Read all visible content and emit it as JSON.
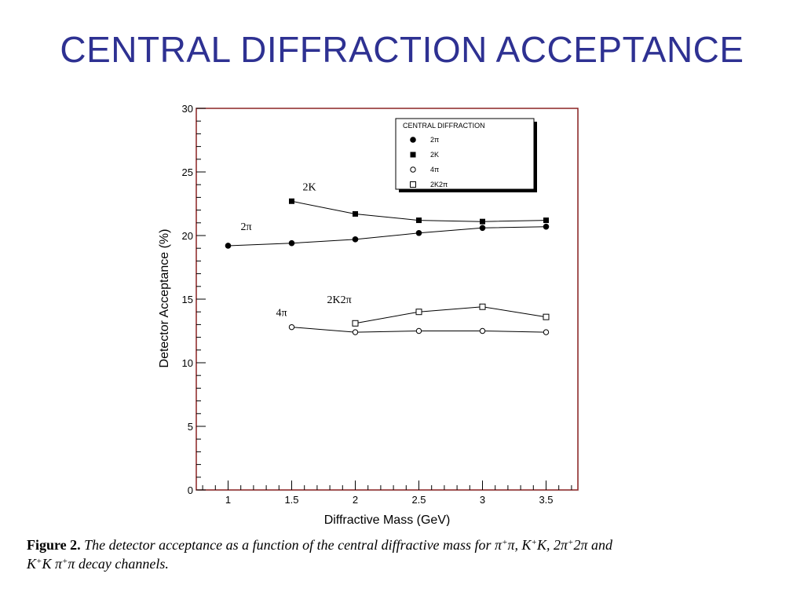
{
  "slide": {
    "title": "CENTRAL DIFFRACTION ACCEPTANCE"
  },
  "chart_data": {
    "type": "line",
    "xlabel": "Diffractive Mass (GeV)",
    "ylabel": "Detector Acceptance (%)",
    "xlim": [
      0.75,
      3.75
    ],
    "ylim": [
      0,
      30
    ],
    "xticks": [
      1,
      1.5,
      2,
      2.5,
      3,
      3.5
    ],
    "xtick_labels": [
      "1",
      "1.5",
      "2",
      "2.5",
      "3",
      "3.5"
    ],
    "yticks": [
      0,
      5,
      10,
      15,
      20,
      25,
      30
    ],
    "ytick_labels": [
      "0",
      "5",
      "10",
      "15",
      "20",
      "25",
      "30"
    ],
    "grid": false,
    "legend": {
      "title": "CENTRAL DIFFRACTION",
      "placement": "top-right",
      "entries": [
        "2π",
        "2K",
        "4π",
        "2K2π"
      ]
    },
    "series": [
      {
        "name": "2π",
        "marker": "filled-circle",
        "label": "2π",
        "x": [
          1,
          1.5,
          2,
          2.5,
          3,
          3.5
        ],
        "y": [
          19.2,
          19.4,
          19.7,
          20.2,
          20.6,
          20.7
        ]
      },
      {
        "name": "2K",
        "marker": "filled-square",
        "label": "2K",
        "x": [
          1.5,
          2,
          2.5,
          3,
          3.5
        ],
        "y": [
          22.7,
          21.7,
          21.2,
          21.1,
          21.2
        ]
      },
      {
        "name": "4π",
        "marker": "open-circle",
        "label": "4π",
        "x": [
          1.5,
          2,
          2.5,
          3,
          3.5
        ],
        "y": [
          12.8,
          12.4,
          12.5,
          12.5,
          12.4
        ]
      },
      {
        "name": "2K2π",
        "marker": "open-square",
        "label": "2K2π",
        "x": [
          2,
          2.5,
          3,
          3.5
        ],
        "y": [
          13.1,
          14.0,
          14.4,
          13.6
        ]
      }
    ]
  },
  "caption": {
    "figure_label": "Figure 2.",
    "text_1": "The detector acceptance as a function of the central diffractive mass for π",
    "sup_1": "+",
    "text_2": "π, K",
    "sup_2": "+",
    "text_3": "K, 2π",
    "sup_3": "+",
    "text_4": "2π and",
    "text_5": "K",
    "sup_5": "+",
    "text_6": "K π",
    "sup_6": "+",
    "text_7": "π decay channels."
  }
}
